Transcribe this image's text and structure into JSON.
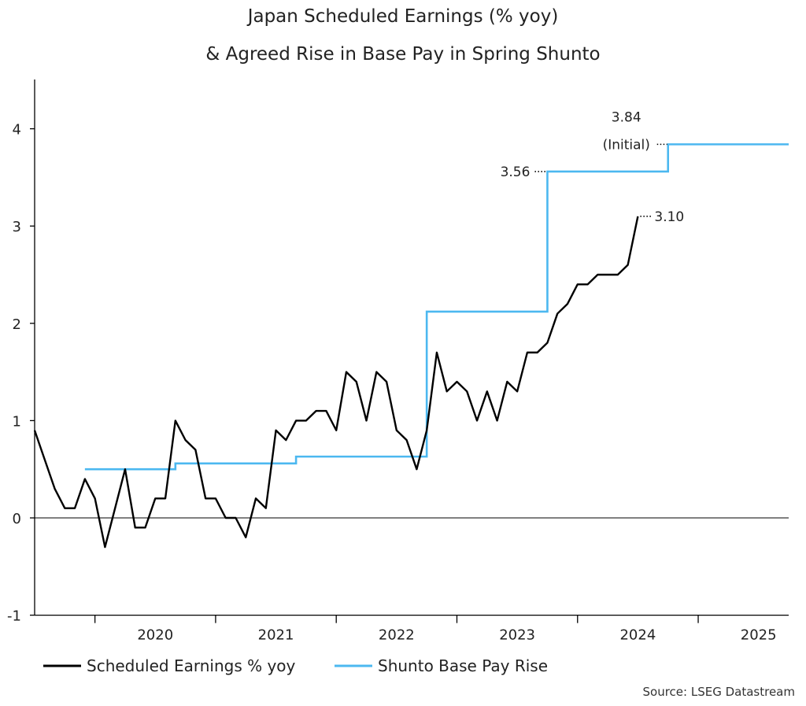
{
  "chart_data": {
    "type": "line",
    "title": "Japan Scheduled Earnings (% yoy)",
    "subtitle": "& Agreed Rise in Base Pay in Spring Shunto",
    "ylim": [
      -1,
      4.5
    ],
    "yticks": [
      -1,
      0,
      1,
      2,
      3,
      4
    ],
    "xlim": [
      "2019-07",
      "2025-10"
    ],
    "xtick_labels": [
      "2020",
      "2021",
      "2022",
      "2023",
      "2024",
      "2025"
    ],
    "grid": false,
    "legend_position": "bottom",
    "source": "Source: LSEG Datastream",
    "series": [
      {
        "name": "Scheduled Earnings % yoy",
        "color": "#000000",
        "points": [
          [
            "2019-07",
            0.9
          ],
          [
            "2019-08",
            0.6
          ],
          [
            "2019-09",
            0.3
          ],
          [
            "2019-10",
            0.1
          ],
          [
            "2019-11",
            0.1
          ],
          [
            "2019-12",
            0.4
          ],
          [
            "2020-01",
            0.2
          ],
          [
            "2020-02",
            -0.3
          ],
          [
            "2020-03",
            0.1
          ],
          [
            "2020-04",
            0.5
          ],
          [
            "2020-05",
            -0.1
          ],
          [
            "2020-06",
            -0.1
          ],
          [
            "2020-07",
            0.2
          ],
          [
            "2020-08",
            0.2
          ],
          [
            "2020-09",
            1.0
          ],
          [
            "2020-10",
            0.8
          ],
          [
            "2020-11",
            0.7
          ],
          [
            "2020-12",
            0.2
          ],
          [
            "2021-01",
            0.2
          ],
          [
            "2021-02",
            0.0
          ],
          [
            "2021-03",
            0.0
          ],
          [
            "2021-04",
            -0.2
          ],
          [
            "2021-05",
            0.2
          ],
          [
            "2021-06",
            0.1
          ],
          [
            "2021-07",
            0.9
          ],
          [
            "2021-08",
            0.8
          ],
          [
            "2021-09",
            1.0
          ],
          [
            "2021-10",
            1.0
          ],
          [
            "2021-11",
            1.1
          ],
          [
            "2021-12",
            1.1
          ],
          [
            "2022-01",
            0.9
          ],
          [
            "2022-02",
            1.5
          ],
          [
            "2022-03",
            1.4
          ],
          [
            "2022-04",
            1.0
          ],
          [
            "2022-05",
            1.5
          ],
          [
            "2022-06",
            1.4
          ],
          [
            "2022-07",
            0.9
          ],
          [
            "2022-08",
            0.8
          ],
          [
            "2022-09",
            0.5
          ],
          [
            "2022-10",
            0.9
          ],
          [
            "2022-11",
            1.7
          ],
          [
            "2022-12",
            1.3
          ],
          [
            "2023-01",
            1.4
          ],
          [
            "2023-02",
            1.3
          ],
          [
            "2023-03",
            1.0
          ],
          [
            "2023-04",
            1.3
          ],
          [
            "2023-05",
            1.0
          ],
          [
            "2023-06",
            1.4
          ],
          [
            "2023-07",
            1.3
          ],
          [
            "2023-08",
            1.7
          ],
          [
            "2023-09",
            1.7
          ],
          [
            "2023-10",
            1.8
          ],
          [
            "2023-11",
            2.1
          ],
          [
            "2023-12",
            2.2
          ],
          [
            "2024-01",
            2.4
          ],
          [
            "2024-02",
            2.4
          ],
          [
            "2024-03",
            2.5
          ],
          [
            "2024-04",
            2.5
          ],
          [
            "2024-05",
            2.5
          ],
          [
            "2024-06",
            2.6
          ],
          [
            "2024-07",
            3.1
          ]
        ]
      },
      {
        "name": "Shunto Base Pay Rise",
        "color": "#4cb8f0",
        "step": true,
        "points": [
          [
            "2019-12",
            0.5
          ],
          [
            "2020-09",
            0.56
          ],
          [
            "2021-09",
            0.63
          ],
          [
            "2022-10",
            2.12
          ],
          [
            "2023-10",
            3.56
          ],
          [
            "2024-10",
            3.84
          ],
          [
            "2025-10",
            3.84
          ]
        ]
      }
    ],
    "annotations": [
      {
        "text": "3.84",
        "x": "2024-10",
        "y": 3.84
      },
      {
        "text": "(Initial)",
        "x": "2024-10",
        "y": 3.84
      },
      {
        "text": "3.56",
        "x": "2023-10",
        "y": 3.56
      },
      {
        "text": "3.10",
        "x": "2024-07",
        "y": 3.1
      }
    ]
  }
}
